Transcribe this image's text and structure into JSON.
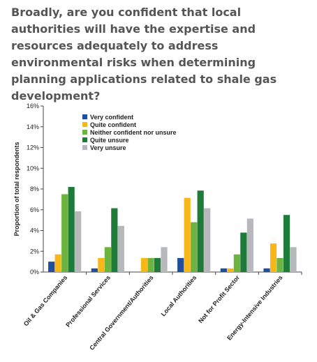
{
  "title": "Broadly, are you confident that local authorities will have the expertise and resources adequately to address environmental risks when determining planning applications related to shale gas development?",
  "chart_data": {
    "type": "bar",
    "title": "Broadly, are you confident that local authorities will have the expertise and resources adequately to address environmental risks when determining planning applications related to shale gas development?",
    "xlabel": "",
    "ylabel": "Proportion of total respondents",
    "ylim": [
      0,
      16
    ],
    "y_ticks": [
      "0%",
      "2%",
      "4%",
      "6%",
      "8%",
      "10%",
      "12%",
      "14%",
      "16%"
    ],
    "grid": false,
    "legend_position": "top-left",
    "categories": [
      "Oil & Gas Companies",
      "Professional Services",
      "Central Government/Authorities",
      "Local Authorities",
      "Not for Profit Sector",
      "Energy-Intensive Industries"
    ],
    "series": [
      {
        "name": "Very confident",
        "color": "#1f4e9c",
        "values": [
          1.0,
          0.35,
          0,
          1.35,
          0.35,
          0.35
        ]
      },
      {
        "name": "Quite confident",
        "color": "#f7b718",
        "values": [
          1.7,
          1.35,
          1.35,
          7.15,
          0.35,
          2.75
        ]
      },
      {
        "name": "Neither confident nor unsure",
        "color": "#6db33f",
        "values": [
          7.5,
          2.4,
          1.35,
          4.8,
          1.7,
          1.35
        ]
      },
      {
        "name": "Quite unsure",
        "color": "#1e7b3a",
        "values": [
          8.2,
          6.15,
          1.35,
          7.85,
          3.8,
          5.5
        ]
      },
      {
        "name": "Very unsure",
        "color": "#b7b8bb",
        "values": [
          5.85,
          4.45,
          2.4,
          6.15,
          5.15,
          2.4
        ]
      }
    ]
  }
}
